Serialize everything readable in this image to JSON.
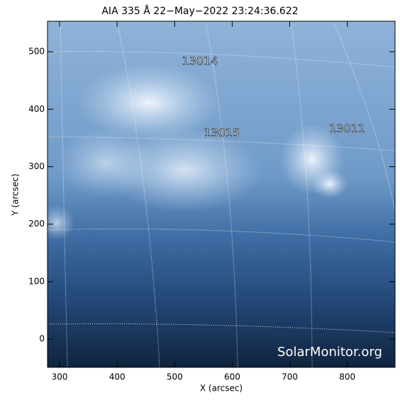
{
  "chart_data": {
    "type": "image",
    "title": "AIA 335 Å 22−May−2022 23:24:36.622",
    "x_label": "X (arcsec)",
    "y_label": "Y (arcsec)",
    "xlim": [
      279,
      883
    ],
    "ylim": [
      -49,
      553
    ],
    "xticks": [
      300,
      400,
      500,
      600,
      700,
      800
    ],
    "yticks": [
      0,
      100,
      200,
      300,
      400,
      500
    ],
    "regions": [
      {
        "label": "13014",
        "x": 544,
        "y": 483
      },
      {
        "label": "13015",
        "x": 582,
        "y": 358
      },
      {
        "label": "13011",
        "x": 800,
        "y": 365
      }
    ],
    "watermark": "SolarMonitor.org"
  }
}
